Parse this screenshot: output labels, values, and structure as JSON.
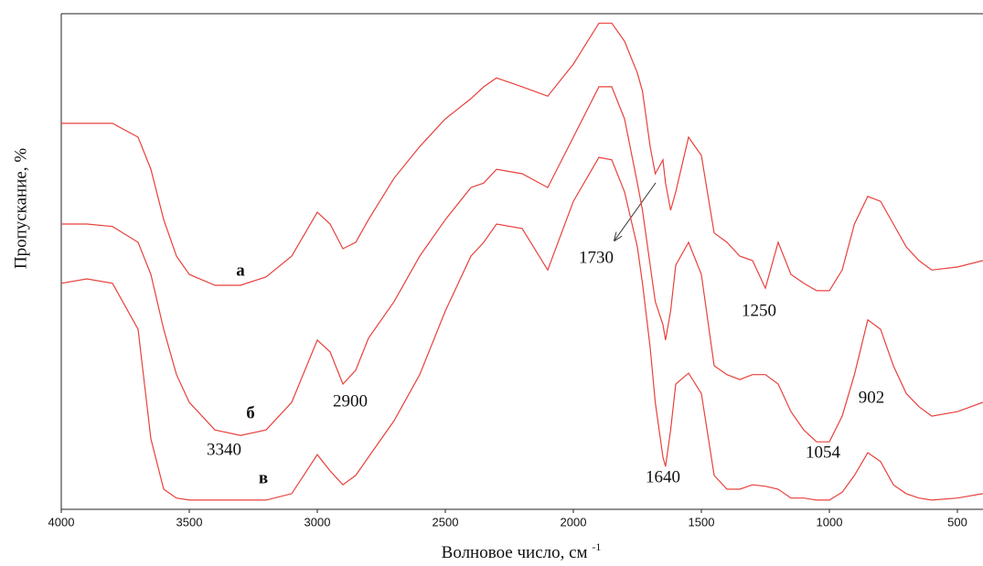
{
  "chart_data": {
    "type": "line",
    "x_label": "Волновое число, см",
    "x_label_sup": "-1",
    "y_label": "Пропускание, %",
    "xlim": [
      4000,
      400
    ],
    "ylim": [
      0,
      100
    ],
    "xticks": [
      4000,
      3500,
      3000,
      2500,
      2000,
      1500,
      1000,
      500
    ],
    "x": [
      4000,
      3900,
      3800,
      3700,
      3650,
      3600,
      3550,
      3500,
      3400,
      3300,
      3200,
      3100,
      3000,
      2950,
      2900,
      2850,
      2800,
      2700,
      2600,
      2500,
      2400,
      2350,
      2300,
      2200,
      2100,
      2000,
      1900,
      1850,
      1800,
      1750,
      1730,
      1700,
      1680,
      1650,
      1640,
      1620,
      1600,
      1550,
      1500,
      1450,
      1400,
      1350,
      1300,
      1250,
      1200,
      1150,
      1100,
      1050,
      1000,
      950,
      902,
      850,
      800,
      750,
      700,
      650,
      600,
      500,
      400
    ],
    "series": [
      {
        "name": "а",
        "color": "#e8413c",
        "values": [
          77.8,
          77.8,
          77.8,
          75,
          68.5,
          58.3,
          50.9,
          47.2,
          45,
          45,
          46.7,
          50.9,
          59.8,
          57.4,
          52.4,
          53.7,
          58.3,
          66.7,
          73.1,
          78.7,
          82.8,
          85.2,
          87,
          85.2,
          83.3,
          89.8,
          98.1,
          98.1,
          94.4,
          88,
          84.3,
          73.1,
          67.6,
          70.4,
          65.7,
          60.2,
          63.9,
          75,
          71.3,
          55.6,
          53.7,
          50.9,
          50,
          44.4,
          53.7,
          47.2,
          45.4,
          43.9,
          43.9,
          48.1,
          57.4,
          63,
          62,
          57.4,
          52.8,
          50,
          48.1,
          48.7,
          50
        ]
      },
      {
        "name": "б",
        "color": "#e8413c",
        "values": [
          57.4,
          57.4,
          56.9,
          53.7,
          47.2,
          36.1,
          26.9,
          21.3,
          15.7,
          14.6,
          15.7,
          21.3,
          33.9,
          31.5,
          25,
          27.8,
          34.3,
          41.7,
          50.9,
          58.3,
          64.8,
          65.7,
          68.5,
          67.6,
          64.8,
          75,
          85.2,
          85.2,
          78.7,
          65.7,
          60.2,
          49.1,
          41.7,
          37,
          33.9,
          39.8,
          49.1,
          53.7,
          47.2,
          28.7,
          26.9,
          25.9,
          26.9,
          26.9,
          25,
          19.4,
          15.7,
          13.3,
          13.3,
          18.5,
          26.9,
          38,
          36.1,
          28.7,
          23.1,
          20.4,
          18.5,
          19.4,
          21.3
        ]
      },
      {
        "name": "в",
        "color": "#e8413c",
        "values": [
          45.4,
          46.3,
          45.4,
          36.1,
          13.9,
          3.7,
          1.9,
          1.5,
          1.5,
          1.5,
          1.5,
          2.8,
          10.7,
          7.4,
          4.6,
          6.5,
          10.2,
          17.6,
          26.9,
          39.8,
          50.9,
          53.7,
          57.4,
          56.5,
          48.1,
          62,
          70.9,
          70.4,
          63.9,
          52.8,
          45.4,
          32.4,
          21.3,
          10.2,
          8.3,
          15.7,
          25,
          27.2,
          23.1,
          6.5,
          3.7,
          3.7,
          4.6,
          4.3,
          3.7,
          1.9,
          1.9,
          1.5,
          1.5,
          3.1,
          6.5,
          11.1,
          9.3,
          4.6,
          2.8,
          1.9,
          1.5,
          1.9,
          2.8
        ]
      }
    ],
    "annotations": [
      "1730",
      "1250",
      "3340",
      "2900",
      "1640",
      "1054",
      "902"
    ]
  }
}
